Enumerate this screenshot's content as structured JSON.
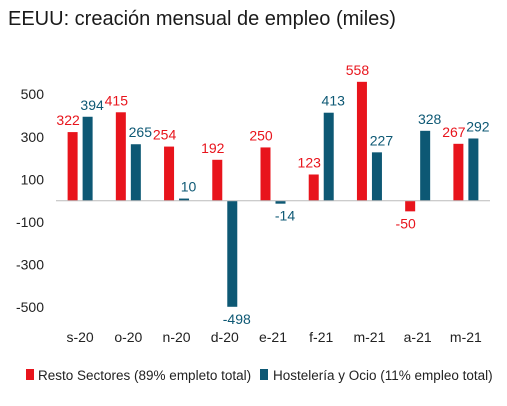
{
  "chart_data": {
    "type": "bar",
    "title": "EEUU: creación mensual de empleo (miles)",
    "categories": [
      "s-20",
      "o-20",
      "n-20",
      "d-20",
      "e-21",
      "f-21",
      "m-21",
      "a-21",
      "m-21"
    ],
    "series": [
      {
        "name": "Resto Sectores (89% empleto total)",
        "color": "#e8141c",
        "values": [
          322,
          415,
          254,
          192,
          250,
          123,
          558,
          -50,
          267
        ]
      },
      {
        "name": "Hostelería y Ocio (11% empleo total)",
        "color": "#0d5874",
        "values": [
          394,
          265,
          10,
          -498,
          -14,
          413,
          227,
          328,
          292
        ]
      }
    ],
    "yticks": [
      "500",
      "300",
      "100",
      "-100",
      "-300",
      "-500"
    ],
    "ylim": [
      -560,
      590
    ],
    "grid": false,
    "legend": "bottom"
  }
}
